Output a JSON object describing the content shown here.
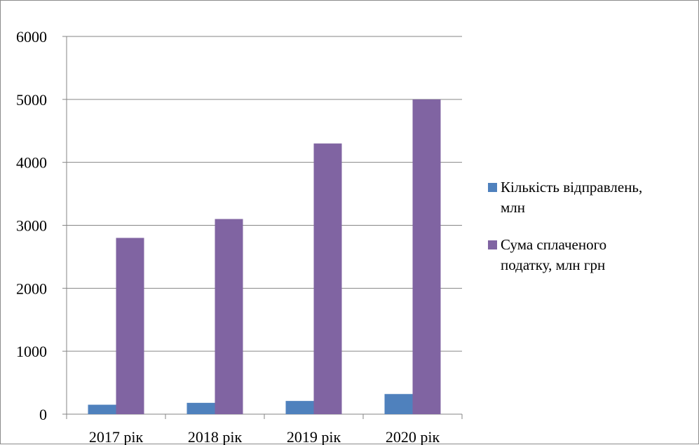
{
  "chart_data": {
    "type": "bar",
    "title": "",
    "xlabel": "",
    "ylabel": "",
    "categories": [
      "2017 рік",
      "2018 рік",
      "2019 рік",
      "2020 рік"
    ],
    "series": [
      {
        "name": "Кількість відправлень, млн",
        "values": [
          150,
          180,
          210,
          320
        ],
        "color": "#4f81bd"
      },
      {
        "name": "Сума сплаченого податку, млн грн",
        "values": [
          2800,
          3100,
          4300,
          5000
        ],
        "color": "#8064a2"
      }
    ],
    "ylim": [
      0,
      6000
    ],
    "yticks": [
      0,
      1000,
      2000,
      3000,
      4000,
      5000,
      6000
    ],
    "grid": true,
    "legend_position": "right"
  },
  "legend": {
    "items": [
      {
        "lines": [
          "Кількість відправлень,",
          "млн"
        ]
      },
      {
        "lines": [
          "Сума сплаченого",
          "податку, млн грн"
        ]
      }
    ]
  }
}
